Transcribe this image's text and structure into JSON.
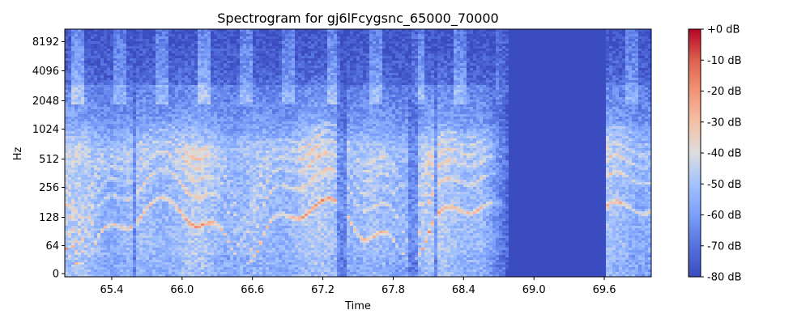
{
  "chart_data": {
    "type": "heatmap",
    "title": "Spectrogram for gj6lFcygsnc_65000_70000",
    "xlabel": "Time",
    "ylabel": "Hz",
    "xlim": [
      65.0,
      70.0
    ],
    "x_ticks": [
      65.4,
      66.0,
      66.6,
      67.2,
      67.8,
      68.4,
      69.0,
      69.6
    ],
    "x_tick_labels": [
      "65.4",
      "66.0",
      "66.6",
      "67.2",
      "67.8",
      "68.4",
      "69.0",
      "69.6"
    ],
    "y_scale": "log2 (symlog)",
    "y_ticks": [
      0,
      64,
      128,
      256,
      512,
      1024,
      2048,
      4096,
      8192
    ],
    "y_tick_labels": [
      "0",
      "64",
      "128",
      "256",
      "512",
      "1024",
      "2048",
      "4096",
      "8192"
    ],
    "colorbar": {
      "range_db": [
        -80,
        0
      ],
      "ticks": [
        0,
        -10,
        -20,
        -30,
        -40,
        -50,
        -60,
        -70,
        -80
      ],
      "tick_labels": [
        "+0 dB",
        "-10 dB",
        "-20 dB",
        "-30 dB",
        "-40 dB",
        "-50 dB",
        "-60 dB",
        "-70 dB",
        "-80 dB"
      ],
      "colormap": "coolwarm",
      "colors": {
        "low": "#3b4cc0",
        "mid": "#dddddd",
        "high": "#b40426"
      }
    },
    "silence_interval": [
      68.78,
      69.62
    ],
    "silence_level_db": -80
  }
}
